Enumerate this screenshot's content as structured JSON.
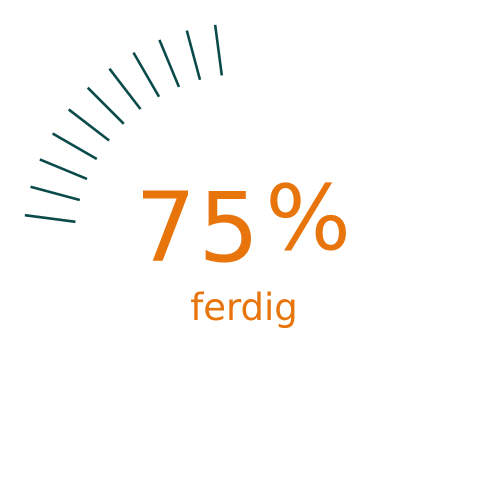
{
  "progress": {
    "value": "75",
    "unit": "%",
    "label": "ferdig",
    "fraction": 0.75,
    "ticks_total": 48
  },
  "colors": {
    "accent": "#e8740c",
    "tick": "#0b4a4a"
  }
}
